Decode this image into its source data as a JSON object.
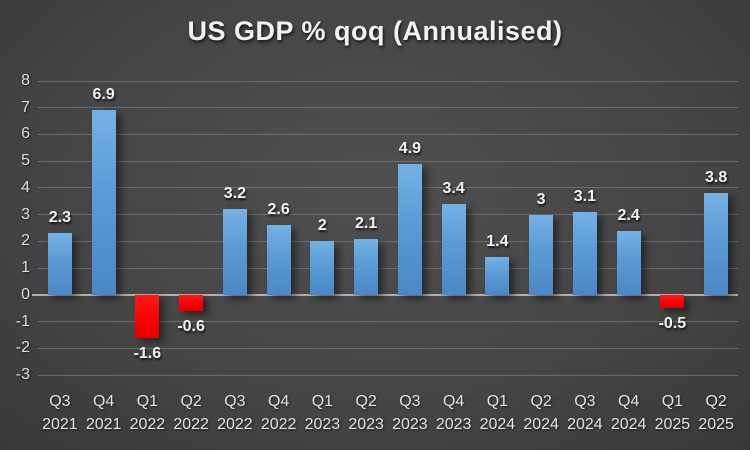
{
  "title": "US GDP % qoq (Annualised)",
  "chart_data": {
    "type": "bar",
    "title": "US GDP % qoq (Annualised)",
    "categories": [
      {
        "quarter": "Q3",
        "year": "2021"
      },
      {
        "quarter": "Q4",
        "year": "2021"
      },
      {
        "quarter": "Q1",
        "year": "2022"
      },
      {
        "quarter": "Q2",
        "year": "2022"
      },
      {
        "quarter": "Q3",
        "year": "2022"
      },
      {
        "quarter": "Q4",
        "year": "2022"
      },
      {
        "quarter": "Q1",
        "year": "2023"
      },
      {
        "quarter": "Q2",
        "year": "2023"
      },
      {
        "quarter": "Q3",
        "year": "2023"
      },
      {
        "quarter": "Q4",
        "year": "2023"
      },
      {
        "quarter": "Q1",
        "year": "2024"
      },
      {
        "quarter": "Q2",
        "year": "2024"
      },
      {
        "quarter": "Q3",
        "year": "2024"
      },
      {
        "quarter": "Q4",
        "year": "2024"
      },
      {
        "quarter": "Q1",
        "year": "2025"
      },
      {
        "quarter": "Q2",
        "year": "2025"
      }
    ],
    "values": [
      2.3,
      6.9,
      -1.6,
      -0.6,
      3.2,
      2.6,
      2,
      2.1,
      4.9,
      3.4,
      1.4,
      3,
      3.1,
      2.4,
      -0.5,
      3.8
    ],
    "labels": [
      "2.3",
      "6.9",
      "-1.6",
      "-0.6",
      "3.2",
      "2.6",
      "2",
      "2.1",
      "4.9",
      "3.4",
      "1.4",
      "3",
      "3.1",
      "2.4",
      "-0.5",
      "3.8"
    ],
    "xlabel": "",
    "ylabel": "",
    "ylim": [
      -3,
      8
    ],
    "ytick_step": 1,
    "grid": "horizontal",
    "legend": "none",
    "colors": {
      "positive_bar": "#5B9BD5",
      "negative_bar": "#FF0000",
      "gridline": "#7A7A7A",
      "zero_axis": "#B0B0B0",
      "data_label": "#F2F2F2",
      "tick_label": "#DCDCDC",
      "title_text": "#F2F2F2",
      "background_center": "#4F4F4F",
      "background_edge": "#242424"
    }
  }
}
